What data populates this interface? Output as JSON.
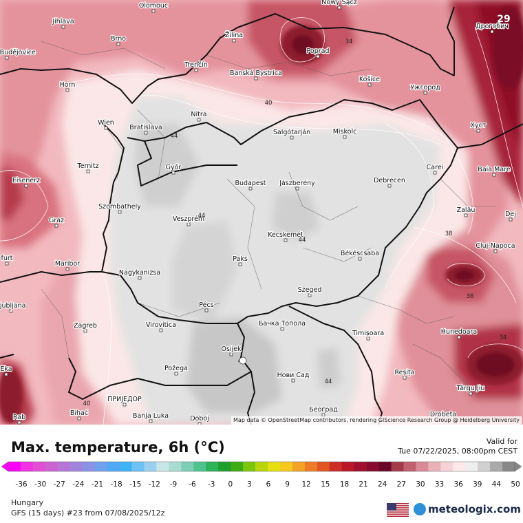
{
  "title": "Max. temperature, 6h (°C)",
  "valid": {
    "label": "Valid for",
    "time": "Tue 07/22/2025, 08:00pm CEST"
  },
  "region": "Hungary",
  "model": "GFS (15 days) #23 from  07/08/2025/12z",
  "attribution": "Map data © OpenStreetMap contributors, rendering GIScience Research Group @ Heidelberg University",
  "brand": "meteologix.com",
  "corner_value": "29",
  "scale": {
    "ticks": [
      "-36",
      "-30",
      "-27",
      "-24",
      "-21",
      "-18",
      "-15",
      "-12",
      "-9",
      "-6",
      "-3",
      "0",
      "3",
      "6",
      "9",
      "12",
      "15",
      "18",
      "21",
      "24",
      "27",
      "30",
      "33",
      "36",
      "39",
      "44",
      "50"
    ],
    "colors": [
      "#ff00ff",
      "#f133e4",
      "#e14fd6",
      "#cc63d2",
      "#b774d6",
      "#a084dc",
      "#8a91e6",
      "#6fa0ee",
      "#4fa9f5",
      "#3fb3f7",
      "#6cc2f2",
      "#9bd0ee",
      "#c8e6e8",
      "#a9dbd0",
      "#7fcfb7",
      "#4fc38f",
      "#2db35a",
      "#1f9f2c",
      "#3dac12",
      "#7cc60b",
      "#b8d60b",
      "#e6df10",
      "#f6c81d",
      "#f4a225",
      "#ee7b25",
      "#e15525",
      "#cc2e27",
      "#b8182a",
      "#a0102e",
      "#860b2e",
      "#6a0627",
      "#a33a4a",
      "#c06070",
      "#d88a96",
      "#eab0b8",
      "#f6d3d6",
      "#fceaea",
      "#eeeeee",
      "#d0d0d0",
      "#aaaaaa",
      "#888888"
    ]
  },
  "cities": [
    {
      "name": "Olomouc"
    },
    {
      "name": "Nowy Sącz"
    },
    {
      "name": "Jihlava"
    },
    {
      "name": "Brno"
    },
    {
      "name": "Žilina"
    },
    {
      "name": "Poprad"
    },
    {
      "name": "Banská Bystrica"
    },
    {
      "name": "Trenčín"
    },
    {
      "name": "Košice"
    },
    {
      "name": "Ужгород"
    },
    {
      "name": "Horn"
    },
    {
      "name": "Nitra"
    },
    {
      "name": "Wien"
    },
    {
      "name": "Bratislava"
    },
    {
      "name": "Salgótarján"
    },
    {
      "name": "Miskolc"
    },
    {
      "name": "Хуст"
    },
    {
      "name": "Дрогобич"
    },
    {
      "name": "Ternitz"
    },
    {
      "name": "Győr"
    },
    {
      "name": "Budapest"
    },
    {
      "name": "Jászberény"
    },
    {
      "name": "Debrecen"
    },
    {
      "name": "Carei"
    },
    {
      "name": "Baia Mare"
    },
    {
      "name": "Eisenerz"
    },
    {
      "name": "Szombathely"
    },
    {
      "name": "Graz"
    },
    {
      "name": "Veszprém"
    },
    {
      "name": "Zalău"
    },
    {
      "name": "Kecskemét"
    },
    {
      "name": "Cluj-Napoca"
    },
    {
      "name": "Békéscsaba"
    },
    {
      "name": "Paks"
    },
    {
      "name": "Maribor"
    },
    {
      "name": "Nagykanizsa"
    },
    {
      "name": "Szeged"
    },
    {
      "name": "Pécs"
    },
    {
      "name": "Zagreb"
    },
    {
      "name": "Virovitica"
    },
    {
      "name": "Бачка Топола"
    },
    {
      "name": "Timișoara"
    },
    {
      "name": "Hunedoara"
    },
    {
      "name": "Osijek"
    },
    {
      "name": "Požega"
    },
    {
      "name": "Нови Сад"
    },
    {
      "name": "Reșița"
    },
    {
      "name": "Târgu Jiu"
    },
    {
      "name": "ПРИЈЕДОР"
    },
    {
      "name": "Bihać"
    },
    {
      "name": "Banja Luka"
    },
    {
      "name": "Doboj"
    },
    {
      "name": "Београд"
    },
    {
      "name": "Drobeta"
    },
    {
      "name": "Rab"
    },
    {
      "name": "Dej"
    },
    {
      "name": "Ljubljana"
    },
    {
      "name": "České Budějovice"
    },
    {
      "name": "Eka"
    },
    {
      "name": "furt"
    }
  ],
  "contour_labels": [
    "34",
    "40",
    "44",
    "44",
    "44",
    "38",
    "36",
    "34",
    "44",
    "40",
    "44"
  ]
}
